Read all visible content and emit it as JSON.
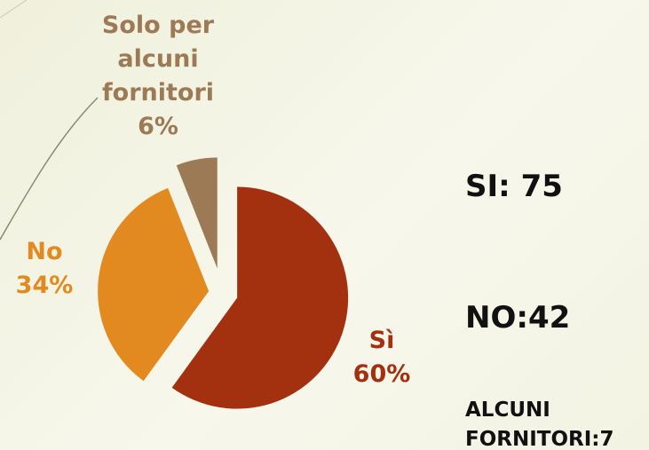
{
  "chart_data": {
    "type": "pie",
    "categories": [
      "Sì",
      "No",
      "Solo per alcuni fornitori"
    ],
    "values": [
      60,
      34,
      6
    ],
    "value_labels": [
      "60%",
      "34%",
      "6%"
    ],
    "colors": [
      "#a3310f",
      "#e2891f",
      "#9c7a55"
    ],
    "annotations": [
      "SI: 75",
      "NO:42",
      "ALCUNI FORNITORI:7"
    ]
  }
}
